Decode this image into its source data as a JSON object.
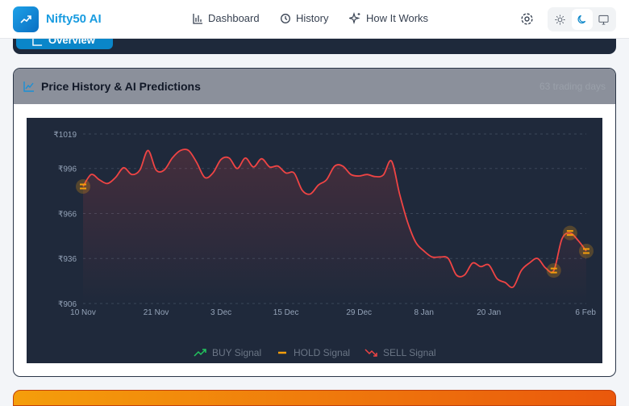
{
  "header": {
    "brand": "Nifty50 AI",
    "nav": [
      {
        "label": "Dashboard",
        "icon": "bar-chart-icon"
      },
      {
        "label": "History",
        "icon": "history-icon"
      },
      {
        "label": "How It Works",
        "icon": "sparkles-icon"
      }
    ],
    "theme_modes": [
      "light",
      "dark",
      "system"
    ],
    "active_theme": "dark"
  },
  "tabs": {
    "active": "Overview"
  },
  "card": {
    "title": "Price History & AI Predictions",
    "meta": "63 trading days"
  },
  "colors": {
    "line": "#ef4444",
    "buy": "#22c55e",
    "hold": "#f59e0b",
    "sell": "#ef4444",
    "accent": "#0a86c9"
  },
  "chart_data": {
    "type": "area",
    "y_ticks": [
      "₹906",
      "₹936",
      "₹966",
      "₹996",
      "₹1019"
    ],
    "y_tick_values": [
      906,
      936,
      966,
      996,
      1019
    ],
    "ylim": [
      906,
      1019
    ],
    "x_ticks": [
      {
        "index": 0,
        "label": "10 Nov"
      },
      {
        "index": 9,
        "label": "21 Nov"
      },
      {
        "index": 17,
        "label": "3 Dec"
      },
      {
        "index": 25,
        "label": "15 Dec"
      },
      {
        "index": 34,
        "label": "29 Dec"
      },
      {
        "index": 42,
        "label": "8 Jan"
      },
      {
        "index": 50,
        "label": "20 Jan"
      },
      {
        "index": 62,
        "label": "6 Feb"
      }
    ],
    "values": [
      984,
      992,
      988.5,
      986,
      990,
      996.5,
      992,
      995,
      1008,
      995,
      995,
      1003,
      1008,
      1008,
      1000,
      990,
      993,
      1002,
      1003,
      996,
      1003,
      997,
      1002.5,
      997,
      997.6,
      993,
      993,
      981.5,
      979,
      985,
      988.5,
      997.6,
      997.6,
      992,
      991,
      992,
      990.6,
      991.7,
      1001,
      979,
      960,
      946.7,
      941,
      937,
      937,
      936,
      925,
      925,
      933,
      930.6,
      931.7,
      922.6,
      920,
      917,
      928,
      933,
      936,
      929.6,
      928,
      949,
      953,
      948,
      941
    ],
    "signals": [
      {
        "index": 0,
        "type": "HOLD"
      },
      {
        "index": 58,
        "type": "HOLD"
      },
      {
        "index": 60,
        "type": "HOLD"
      },
      {
        "index": 62,
        "type": "HOLD"
      }
    ],
    "legend": [
      {
        "label": "BUY Signal",
        "type": "buy"
      },
      {
        "label": "HOLD Signal",
        "type": "hold"
      },
      {
        "label": "SELL Signal",
        "type": "sell"
      }
    ],
    "grid": true,
    "legend_position": "bottom"
  }
}
